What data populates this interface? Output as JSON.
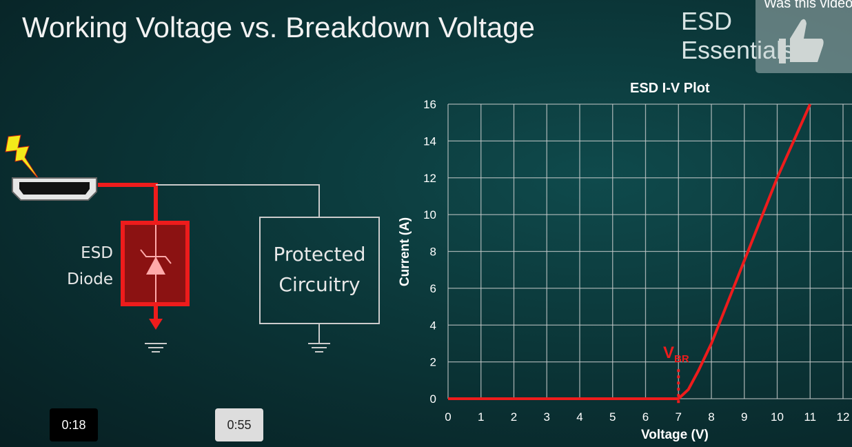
{
  "slide": {
    "title": "Working Voltage vs. Breakdown Voltage",
    "brand": "ESD Essentials"
  },
  "diagram": {
    "diode_label_1": "ESD",
    "diode_label_2": "Diode",
    "box_label_1": "Protected",
    "box_label_2": "Circuitry"
  },
  "player": {
    "feedback_prompt": "Was this video",
    "thumbs_up_icon": "thumbs-up-icon",
    "current_time": "0:18",
    "hover_time": "0:55"
  },
  "colors": {
    "accent": "#ee1c1c",
    "grid": "#c8cccc"
  },
  "chart_data": {
    "type": "line",
    "title": "ESD I-V Plot",
    "xlabel": "Voltage (V)",
    "ylabel": "Current (A)",
    "xlim": [
      0,
      12
    ],
    "ylim": [
      0,
      16
    ],
    "grid": true,
    "xticks": [
      "0",
      "1",
      "2",
      "3",
      "4",
      "5",
      "6",
      "7",
      "8",
      "9",
      "10",
      "11",
      "12"
    ],
    "yticks": [
      "0",
      "2",
      "4",
      "6",
      "8",
      "10",
      "12",
      "14",
      "16"
    ],
    "series": [
      {
        "x": [
          0,
          7,
          7.3,
          7.6,
          8,
          9,
          10,
          11
        ],
        "y": [
          0,
          0,
          0.5,
          1.5,
          3,
          7.5,
          12,
          16
        ]
      }
    ],
    "annotation": {
      "text": "V",
      "subscript": "BR",
      "x": 7
    }
  }
}
